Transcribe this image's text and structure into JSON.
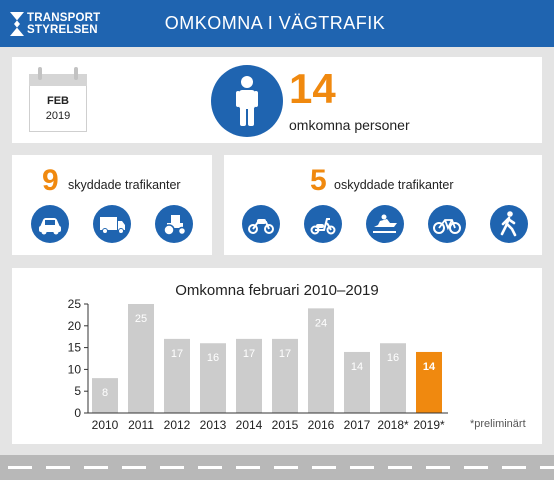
{
  "header": {
    "logo_line1": "TRANSPORT",
    "logo_line2": "STYRELSEN",
    "title": "OMKOMNA I VÄGTRAFIK"
  },
  "calendar": {
    "month": "FEB",
    "year": "2019"
  },
  "summary": {
    "total": "14",
    "total_label": "omkomna personer"
  },
  "protected": {
    "count": "9",
    "label": "skyddade trafikanter",
    "icons": [
      "car-icon",
      "truck-icon",
      "tractor-icon"
    ]
  },
  "unprotected": {
    "count": "5",
    "label": "oskyddade trafikanter",
    "icons": [
      "motorcycle-icon",
      "moped-icon",
      "snowmobile-icon",
      "bicycle-icon",
      "pedestrian-icon"
    ]
  },
  "chart_data": {
    "type": "bar",
    "title": "Omkomna februari 2010–2019",
    "categories": [
      "2010",
      "2011",
      "2012",
      "2013",
      "2014",
      "2015",
      "2016",
      "2017",
      "2018*",
      "2019*"
    ],
    "values": [
      8,
      25,
      17,
      16,
      17,
      17,
      24,
      14,
      16,
      14
    ],
    "ylim": [
      0,
      25
    ],
    "yticks": [
      0,
      5,
      10,
      15,
      20,
      25
    ],
    "grid": false,
    "note": "*preliminärt"
  },
  "colors": {
    "brand_blue": "#1f64b0",
    "accent_orange": "#f0890f",
    "bar_gray": "#cccccc",
    "highlight_bar": "#f0890f"
  }
}
